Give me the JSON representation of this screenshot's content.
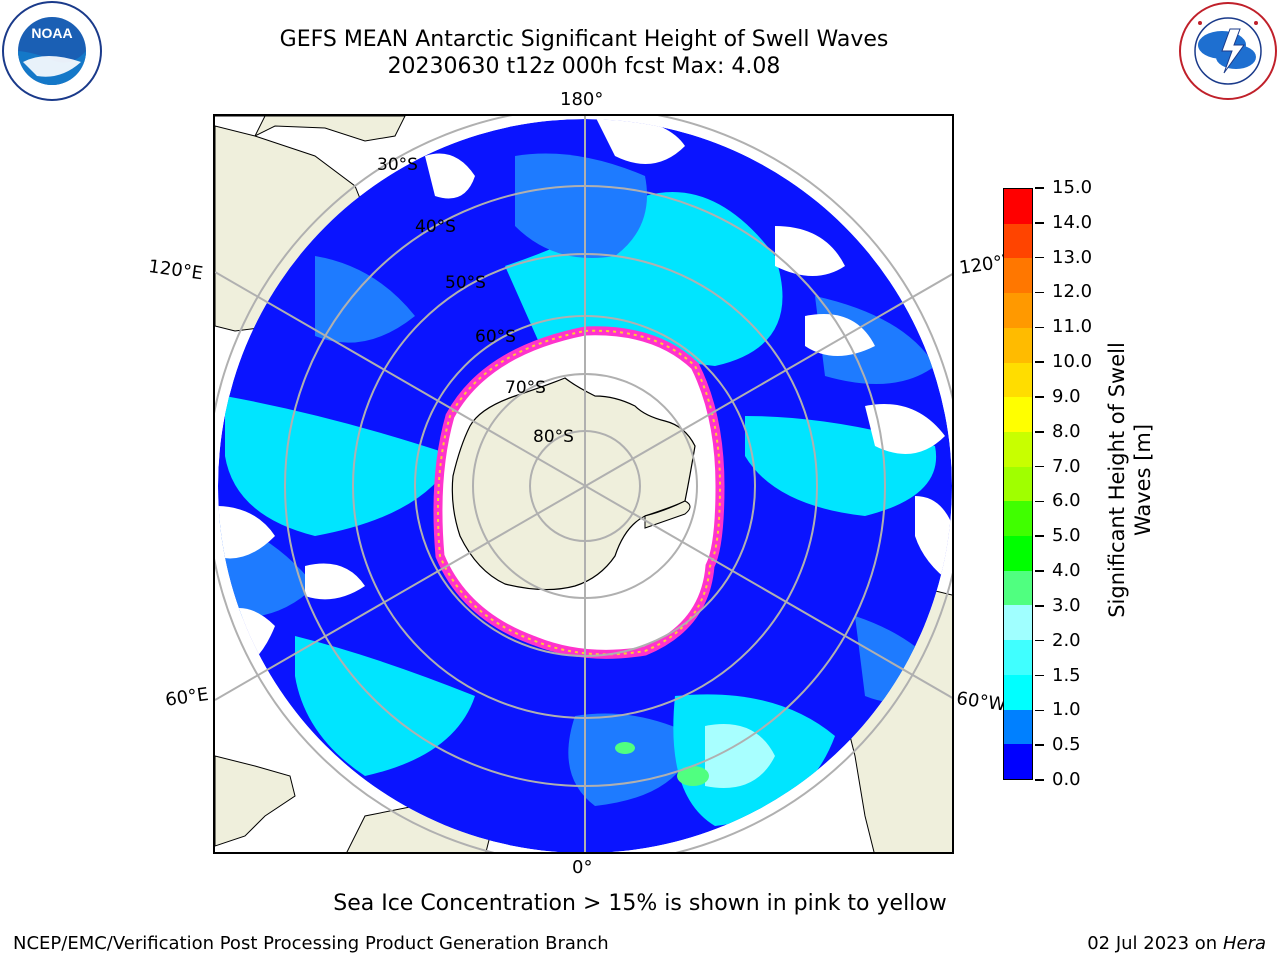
{
  "title": {
    "line1": "GEFS MEAN Antarctic Significant Height of Swell Waves",
    "line2": "20230630 t12z 000h fcst   Max: 4.08"
  },
  "logos": {
    "left": {
      "name": "NOAA",
      "text": "NOAA",
      "ring_text": "NATIONAL OCEANIC AND ATMOSPHERIC ADMINISTRATION · U.S. DEPARTMENT OF COMMERCE"
    },
    "right": {
      "name": "National Weather Service",
      "ring_text": "NATIONAL WEATHER SERVICE"
    }
  },
  "map": {
    "projection": "south polar stereographic",
    "longitude_labels": {
      "top": "180°",
      "bottom": "0°",
      "upper_left": "120°E",
      "upper_right": "120°W",
      "lower_left": "60°E",
      "lower_right": "60°W"
    },
    "latitude_labels": [
      "30°S",
      "40°S",
      "50°S",
      "60°S",
      "70°S",
      "80°S"
    ],
    "colors": {
      "land": "#efefdc",
      "ice_inner": "#ffffff",
      "ice_edge": "#ff33cc",
      "ice_edge_alt": "#ffcc33",
      "grid": "#b0b0b0",
      "coast": "#000000"
    }
  },
  "colorbar": {
    "title_line1": "Significant Height of Swell",
    "title_line2": "Waves [m]",
    "tick_labels": [
      "0.0",
      "0.5",
      "1.0",
      "1.5",
      "2.0",
      "3.0",
      "4.0",
      "5.0",
      "6.0",
      "7.0",
      "8.0",
      "9.0",
      "10.0",
      "11.0",
      "12.0",
      "13.0",
      "14.0",
      "15.0"
    ],
    "colors": [
      "#0000ff",
      "#0080ff",
      "#00ffff",
      "#40ffff",
      "#a0ffff",
      "#50ff80",
      "#00ff00",
      "#40ff00",
      "#a0ff00",
      "#c8ff00",
      "#ffff00",
      "#ffdd00",
      "#ffbb00",
      "#ff9900",
      "#ff7700",
      "#ff4400",
      "#ff0000"
    ]
  },
  "note": "Sea Ice Concentration > 15% is shown in pink to yellow",
  "footer": {
    "left": "NCEP/EMC/Verification Post Processing Product Generation Branch",
    "right_date": "02 Jul 2023 on ",
    "right_host": "Hera"
  }
}
